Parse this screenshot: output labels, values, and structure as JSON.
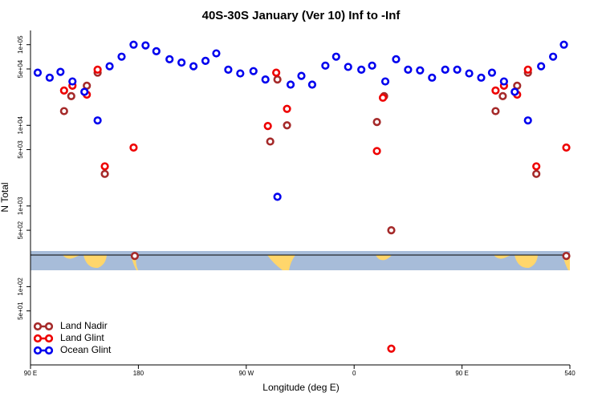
{
  "chart_data": {
    "type": "scatter",
    "title": "40S-30S January (Ver 10)   Inf to -Inf",
    "x_label": "Longitude (deg E)",
    "y_label": "N Total",
    "xlim": [
      90,
      540
    ],
    "xticks": [
      {
        "value": 90,
        "label": "90 E"
      },
      180,
      {
        "value": 270,
        "label": "90 W"
      },
      {
        "value": 360,
        "label": "0"
      },
      {
        "value": 450,
        "label": "90 E"
      },
      540
    ],
    "ylim": [
      10.7,
      150000
    ],
    "ylog": true,
    "yticks": [
      {
        "value": 100000,
        "label": "1e+05"
      },
      {
        "value": 50000,
        "label": "5e+04"
      },
      {
        "value": 10000,
        "label": "1e+04"
      },
      {
        "value": 5000,
        "label": "5e+03"
      },
      {
        "value": 1000,
        "label": "1e+03"
      },
      {
        "value": 500,
        "label": "5e+02"
      },
      {
        "value": 100,
        "label": "1e+02"
      },
      {
        "value": 50,
        "label": "5e+01"
      }
    ],
    "legend": "bottom-left",
    "series": [
      {
        "name": "Land Nadir",
        "color": "#a52a2a",
        "x": [
          118,
          124,
          137,
          146,
          152,
          177,
          290,
          296,
          304,
          379,
          385,
          391,
          478,
          484,
          496,
          505,
          512,
          537
        ],
        "values": [
          15000,
          23000,
          31000,
          45000,
          2500,
          240,
          6300,
          37000,
          10000,
          11000,
          23000,
          500,
          15000,
          23000,
          31000,
          45000,
          2500,
          240
        ]
      },
      {
        "name": "Land Glint",
        "color": "#ee0000",
        "x": [
          118,
          125,
          137,
          146,
          152,
          176,
          288,
          295,
          304,
          379,
          384,
          391,
          478,
          485,
          496,
          505,
          512,
          537
        ],
        "values": [
          27000,
          31000,
          24000,
          49000,
          3100,
          5300,
          9800,
          45000,
          16000,
          4800,
          22000,
          17,
          27000,
          31000,
          24000,
          49000,
          3100,
          5300
        ]
      },
      {
        "name": "Ocean Glint",
        "color": "#0000ee",
        "x": [
          96,
          106,
          115,
          125,
          135,
          146,
          156,
          166,
          176,
          186,
          195,
          206,
          216,
          226,
          236,
          245,
          255,
          265,
          276,
          286,
          296,
          307,
          316,
          325,
          336,
          345,
          355,
          366,
          375,
          386,
          395,
          405,
          415,
          425,
          436,
          446,
          456,
          466,
          475,
          485,
          494,
          505,
          516,
          526,
          535
        ],
        "values": [
          45000,
          39000,
          46000,
          35000,
          26000,
          11500,
          54000,
          71000,
          100000,
          98000,
          83000,
          66000,
          60000,
          54000,
          63000,
          78000,
          49000,
          44000,
          47000,
          37000,
          1300,
          32000,
          41000,
          32000,
          55000,
          71000,
          53000,
          49000,
          55000,
          35000,
          66000,
          49000,
          48000,
          39000,
          49000,
          49000,
          44000,
          39000,
          45000,
          35000,
          26000,
          11500,
          54000,
          71000,
          100000
        ]
      }
    ]
  }
}
